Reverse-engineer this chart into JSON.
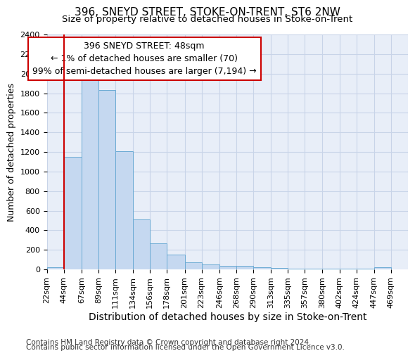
{
  "title1": "396, SNEYD STREET, STOKE-ON-TRENT, ST6 2NW",
  "title2": "Size of property relative to detached houses in Stoke-on-Trent",
  "xlabel": "Distribution of detached houses by size in Stoke-on-Trent",
  "ylabel": "Number of detached properties",
  "footer1": "Contains HM Land Registry data © Crown copyright and database right 2024.",
  "footer2": "Contains public sector information licensed under the Open Government Licence v3.0.",
  "annotation_line1": "396 SNEYD STREET: 48sqm",
  "annotation_line2": "← 1% of detached houses are smaller (70)",
  "annotation_line3": "99% of semi-detached houses are larger (7,194) →",
  "bar_left_edges": [
    22,
    44,
    67,
    89,
    111,
    134,
    156,
    178,
    201,
    223,
    246,
    268,
    290,
    313,
    335,
    357,
    380,
    402,
    424,
    447
  ],
  "bar_widths": [
    22,
    23,
    22,
    22,
    23,
    22,
    22,
    23,
    22,
    23,
    22,
    22,
    23,
    22,
    22,
    23,
    22,
    22,
    23,
    22
  ],
  "bar_heights": [
    25,
    1150,
    1940,
    1835,
    1210,
    510,
    265,
    155,
    75,
    50,
    40,
    35,
    20,
    15,
    10,
    10,
    5,
    5,
    5,
    20
  ],
  "bar_color": "#c5d8f0",
  "bar_edge_color": "#6aaad4",
  "red_line_x": 44,
  "ylim": [
    0,
    2400
  ],
  "yticks": [
    0,
    200,
    400,
    600,
    800,
    1000,
    1200,
    1400,
    1600,
    1800,
    2000,
    2200,
    2400
  ],
  "xtick_labels": [
    "22sqm",
    "44sqm",
    "67sqm",
    "89sqm",
    "111sqm",
    "134sqm",
    "156sqm",
    "178sqm",
    "201sqm",
    "223sqm",
    "246sqm",
    "268sqm",
    "290sqm",
    "313sqm",
    "335sqm",
    "357sqm",
    "380sqm",
    "402sqm",
    "424sqm",
    "447sqm",
    "469sqm"
  ],
  "xtick_positions": [
    22,
    44,
    67,
    89,
    111,
    134,
    156,
    178,
    201,
    223,
    246,
    268,
    290,
    313,
    335,
    357,
    380,
    402,
    424,
    447,
    469
  ],
  "grid_color": "#c8d4e8",
  "bg_color": "#e8eef8",
  "annotation_box_facecolor": "#ffffff",
  "annotation_box_edgecolor": "#cc0000",
  "red_line_color": "#cc0000",
  "title1_fontsize": 11,
  "title2_fontsize": 9.5,
  "ylabel_fontsize": 9,
  "xlabel_fontsize": 10,
  "tick_fontsize": 8,
  "annotation_fontsize": 9,
  "footer_fontsize": 7.5
}
